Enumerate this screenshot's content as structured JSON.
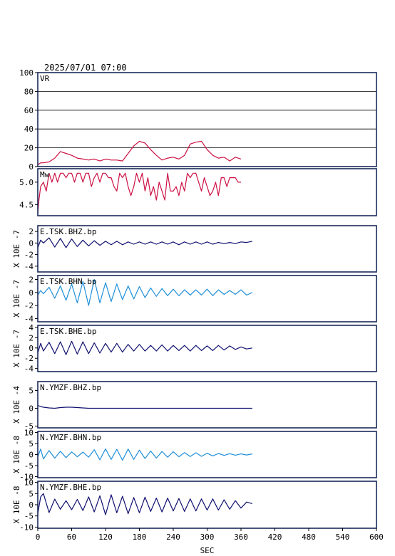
{
  "header": {
    "datetime": "2025/07/01 07:00"
  },
  "colors": {
    "vr": "#cc1144",
    "mw": "#cc1144",
    "navy": "#101070",
    "sky": "#1f8fd8",
    "frame": "#1a2a5a"
  },
  "chart_data": [
    {
      "id": "vr",
      "type": "line",
      "label": "VR",
      "ylim": [
        0,
        100
      ],
      "yticks": [
        0,
        20,
        40,
        60,
        80,
        100
      ],
      "grid": true,
      "x": [
        0,
        5,
        10,
        20,
        30,
        40,
        50,
        60,
        70,
        80,
        90,
        100,
        110,
        120,
        130,
        140,
        150,
        160,
        170,
        180,
        190,
        200,
        210,
        220,
        230,
        240,
        250,
        260,
        270,
        280,
        290,
        300,
        310,
        320,
        330,
        340,
        350,
        360
      ],
      "values": [
        2,
        4,
        4,
        5,
        9,
        16,
        14,
        12,
        9,
        8,
        7,
        8,
        6,
        8,
        7,
        7,
        6,
        14,
        22,
        27,
        25,
        18,
        12,
        7,
        9,
        10,
        8,
        12,
        24,
        26,
        27,
        18,
        12,
        9,
        10,
        6,
        10,
        8
      ]
    },
    {
      "id": "mw",
      "type": "line",
      "label": "Mw",
      "ylim": [
        4.25,
        5.3
      ],
      "yticks": [
        4.5,
        5.0
      ],
      "yticklabels": [
        "4.5",
        "5.0"
      ],
      "x": [
        0,
        2,
        5,
        10,
        15,
        20,
        25,
        30,
        35,
        40,
        45,
        50,
        55,
        60,
        65,
        70,
        75,
        80,
        85,
        90,
        95,
        100,
        105,
        110,
        115,
        120,
        125,
        130,
        135,
        140,
        145,
        150,
        155,
        160,
        165,
        170,
        175,
        180,
        185,
        190,
        195,
        200,
        205,
        210,
        215,
        220,
        225,
        230,
        235,
        240,
        245,
        250,
        255,
        260,
        265,
        270,
        275,
        280,
        285,
        290,
        295,
        300,
        305,
        310,
        315,
        320,
        325,
        330,
        335,
        340,
        345,
        350,
        355,
        360
      ],
      "values": [
        4.3,
        4.6,
        4.9,
        5.0,
        4.8,
        5.2,
        5.0,
        5.2,
        5.0,
        5.2,
        5.2,
        5.1,
        5.2,
        5.2,
        5.0,
        5.2,
        5.2,
        5.0,
        5.2,
        5.2,
        4.9,
        5.1,
        5.2,
        5.0,
        5.2,
        5.2,
        5.1,
        5.1,
        4.9,
        4.8,
        5.2,
        5.1,
        5.2,
        4.9,
        4.7,
        4.9,
        5.2,
        5.0,
        5.2,
        4.8,
        5.1,
        4.7,
        4.9,
        4.6,
        5.0,
        4.8,
        4.6,
        5.2,
        4.8,
        4.8,
        4.9,
        4.7,
        5.0,
        4.8,
        5.2,
        5.1,
        5.2,
        5.2,
        5.0,
        4.8,
        5.1,
        4.9,
        4.7,
        4.8,
        5.0,
        4.7,
        5.1,
        5.1,
        4.9,
        5.1,
        5.1,
        5.1,
        5.0,
        5.0
      ]
    },
    {
      "id": "tsk_bhz",
      "type": "line",
      "label": "E.TSK.BHZ.bp",
      "ylim": [
        -5,
        3
      ],
      "yticks": [
        -4,
        -2,
        0,
        2
      ],
      "yticklabels": [
        "-4",
        "-2",
        "0",
        "2"
      ],
      "ylabel": "X 10E -7",
      "x": [
        0,
        5,
        10,
        20,
        30,
        40,
        50,
        60,
        70,
        80,
        90,
        100,
        110,
        120,
        130,
        140,
        150,
        160,
        170,
        180,
        190,
        200,
        210,
        220,
        230,
        240,
        250,
        260,
        270,
        280,
        290,
        300,
        310,
        320,
        330,
        340,
        350,
        360,
        370,
        380
      ],
      "values": [
        -0.8,
        0.5,
        0.0,
        0.9,
        -0.7,
        0.8,
        -0.8,
        0.7,
        -0.6,
        0.5,
        -0.5,
        0.4,
        -0.4,
        0.3,
        -0.3,
        0.3,
        -0.3,
        0.2,
        -0.2,
        0.2,
        -0.2,
        0.2,
        -0.2,
        0.2,
        -0.2,
        0.2,
        -0.3,
        0.2,
        -0.2,
        0.2,
        -0.2,
        0.2,
        -0.2,
        0.1,
        -0.1,
        0.1,
        -0.1,
        0.2,
        0.1,
        0.3
      ]
    },
    {
      "id": "tsk_bhn",
      "type": "line",
      "label": "E.TSK.BHN.bp",
      "ylim": [
        -4.5,
        2.6
      ],
      "yticks": [
        -4,
        -2,
        0,
        2
      ],
      "yticklabels": [
        "-4",
        "-2",
        "0",
        "2"
      ],
      "ylabel": "X 10E -7",
      "x": [
        0,
        5,
        10,
        20,
        30,
        40,
        50,
        60,
        70,
        80,
        90,
        100,
        110,
        120,
        130,
        140,
        150,
        160,
        170,
        180,
        190,
        200,
        210,
        220,
        230,
        240,
        250,
        260,
        270,
        280,
        290,
        300,
        310,
        320,
        330,
        340,
        350,
        360,
        370,
        380
      ],
      "values": [
        -0.4,
        0.3,
        -0.2,
        0.8,
        -0.9,
        1.0,
        -1.2,
        1.3,
        -1.6,
        1.7,
        -2.0,
        2.0,
        -1.6,
        1.5,
        -1.4,
        1.3,
        -1.1,
        1.0,
        -1.0,
        0.9,
        -0.8,
        0.7,
        -0.6,
        0.6,
        -0.5,
        0.5,
        -0.5,
        0.4,
        -0.4,
        0.4,
        -0.4,
        0.5,
        -0.5,
        0.4,
        -0.3,
        0.3,
        -0.3,
        0.4,
        -0.4,
        0.0
      ]
    },
    {
      "id": "tsk_bhe",
      "type": "line",
      "label": "E.TSK.BHE.bp",
      "ylim": [
        -4.6,
        4.4
      ],
      "yticks": [
        -4,
        -2,
        0,
        2,
        4
      ],
      "yticklabels": [
        "-4",
        "-2",
        "0",
        "2",
        "4"
      ],
      "ylabel": "X 10E -7",
      "x": [
        0,
        5,
        10,
        20,
        30,
        40,
        50,
        60,
        70,
        80,
        90,
        100,
        110,
        120,
        130,
        140,
        150,
        160,
        170,
        180,
        190,
        200,
        210,
        220,
        230,
        240,
        250,
        260,
        270,
        280,
        290,
        300,
        310,
        320,
        330,
        340,
        350,
        360,
        370,
        380
      ],
      "values": [
        -1.0,
        0.9,
        -0.6,
        1.1,
        -1.1,
        1.2,
        -1.3,
        1.3,
        -1.2,
        1.2,
        -1.1,
        1.0,
        -1.0,
        0.9,
        -0.8,
        0.9,
        -0.8,
        0.7,
        -0.6,
        0.7,
        -0.6,
        0.5,
        -0.6,
        0.6,
        -0.6,
        0.5,
        -0.5,
        0.5,
        -0.6,
        0.5,
        -0.5,
        0.4,
        -0.5,
        0.5,
        -0.4,
        0.4,
        -0.3,
        0.2,
        -0.2,
        0.0
      ]
    },
    {
      "id": "ymzf_bhz",
      "type": "line",
      "label": "N.YMZF.BHZ.bp",
      "ylim": [
        -5.5,
        7.5
      ],
      "yticks": [
        -5,
        0,
        5
      ],
      "yticklabels": [
        "-5",
        "0",
        "5"
      ],
      "ylabel": "X 10E -4",
      "x": [
        0,
        5,
        10,
        20,
        30,
        40,
        50,
        60,
        70,
        80,
        90,
        100,
        120,
        150,
        200,
        250,
        300,
        350,
        380
      ],
      "values": [
        0.8,
        0.5,
        0.3,
        0.1,
        0.0,
        0.2,
        0.3,
        0.3,
        0.2,
        0.1,
        0.0,
        0.0,
        0.0,
        0.0,
        0.0,
        0.0,
        0.0,
        0.0,
        0.0
      ]
    },
    {
      "id": "ymzf_bhn",
      "type": "line",
      "label": "N.YMZF.BHN.bp",
      "ylim": [
        -10.5,
        10.5
      ],
      "yticks": [
        -10,
        -5,
        0,
        5,
        10
      ],
      "yticklabels": [
        "-10",
        "-5",
        "0",
        "5",
        "10"
      ],
      "ylabel": "X 10E -8",
      "x": [
        0,
        5,
        10,
        20,
        30,
        40,
        50,
        60,
        70,
        80,
        90,
        100,
        110,
        120,
        130,
        140,
        150,
        160,
        170,
        180,
        190,
        200,
        210,
        220,
        230,
        240,
        250,
        260,
        270,
        280,
        290,
        300,
        310,
        320,
        330,
        340,
        350,
        360,
        370,
        380
      ],
      "values": [
        -1.0,
        2.5,
        -2.0,
        1.8,
        -1.6,
        1.5,
        -1.4,
        1.2,
        -1.0,
        1.1,
        -1.2,
        2.2,
        -2.4,
        2.6,
        -2.2,
        2.4,
        -2.6,
        2.5,
        -2.2,
        2.0,
        -1.8,
        1.6,
        -1.6,
        1.4,
        -1.2,
        1.3,
        -1.0,
        0.9,
        -0.9,
        0.8,
        -0.8,
        0.6,
        -0.6,
        0.5,
        -0.4,
        0.4,
        -0.3,
        0.3,
        -0.2,
        0.3
      ]
    },
    {
      "id": "ymzf_bhe",
      "type": "line",
      "label": "N.YMZF.BHE.bp",
      "ylim": [
        -10.5,
        10.5
      ],
      "yticks": [
        -10,
        -5,
        0,
        5,
        10
      ],
      "yticklabels": [
        "-10",
        "-5",
        "0",
        "5",
        "10"
      ],
      "ylabel": "X 10E -8",
      "x": [
        0,
        5,
        10,
        20,
        30,
        40,
        50,
        60,
        70,
        80,
        90,
        100,
        110,
        120,
        130,
        140,
        150,
        160,
        170,
        180,
        190,
        200,
        210,
        220,
        230,
        240,
        250,
        260,
        270,
        280,
        290,
        300,
        310,
        320,
        330,
        340,
        350,
        360,
        370,
        380
      ],
      "values": [
        -4.0,
        3.5,
        5.0,
        -3.5,
        2.5,
        -2.0,
        1.8,
        -2.2,
        2.4,
        -2.6,
        3.5,
        -3.2,
        4.0,
        -4.5,
        4.5,
        -3.6,
        3.8,
        -4.0,
        3.2,
        -3.6,
        3.4,
        -3.0,
        3.0,
        -3.2,
        3.0,
        -2.8,
        2.8,
        -3.0,
        2.6,
        -2.8,
        2.6,
        -2.4,
        2.6,
        -2.4,
        2.2,
        -2.0,
        1.8,
        -1.5,
        1.2,
        0.5
      ]
    }
  ],
  "x_axis": {
    "xlim": [
      0,
      600
    ],
    "ticks": [
      0,
      60,
      120,
      180,
      240,
      300,
      360,
      420,
      480,
      540,
      600
    ],
    "ticklabels": [
      "0",
      "60",
      "120",
      "180",
      "240",
      "300",
      "360",
      "420",
      "480",
      "540",
      "600"
    ],
    "label": "SEC"
  }
}
